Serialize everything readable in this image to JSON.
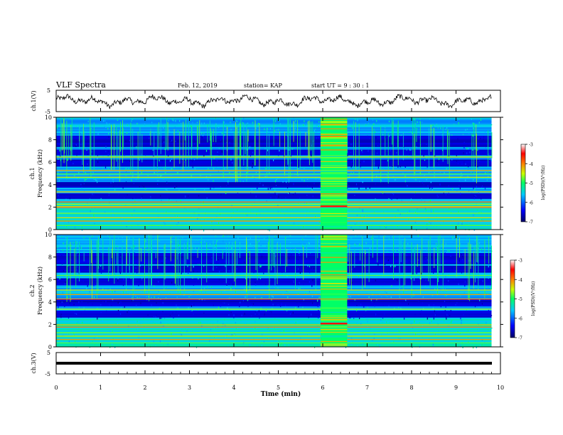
{
  "header": {
    "title": "VLF Spectra",
    "date": "Feb. 12, 2019",
    "station": "station= KAP",
    "start": "start  UT =  9 : 30 : 1"
  },
  "colorbar": {
    "label": "log(PSD)(V²/Hz)",
    "ticks": [
      "-3",
      "-4",
      "-5",
      "-6",
      "-7"
    ],
    "range": [
      -7,
      -3
    ],
    "colors": [
      "#000066",
      "#0000ff",
      "#00c8ff",
      "#00ff66",
      "#c8ff00",
      "#ff8000",
      "#ff0000",
      "#ffffff"
    ]
  },
  "chart_data": [
    {
      "type": "line",
      "id": "ch1-waveform",
      "ylabel": "ch.1(V)",
      "xlim": [
        0,
        10
      ],
      "ylim": [
        -5,
        5
      ],
      "yticks": [
        "5",
        "-5"
      ],
      "x_extent": [
        0,
        9.8
      ],
      "approx_mean": 0.0,
      "approx_amplitude": 2.5
    },
    {
      "type": "heatmap",
      "id": "ch1-spectrogram",
      "ylabel": "ch.1\nFrequency (kHz)",
      "xlim": [
        0,
        10
      ],
      "ylim": [
        0,
        10
      ],
      "yticks": [
        "0",
        "2",
        "4",
        "6",
        "8",
        "10"
      ],
      "x_extent": [
        0,
        9.8
      ],
      "value_range": [
        -7,
        -3
      ],
      "dark_bands_khz": [
        [
          2.8,
          3.3
        ],
        [
          3.7,
          4.3
        ],
        [
          5.6,
          6.2
        ],
        [
          6.6,
          7.1
        ],
        [
          7.4,
          8.4
        ]
      ],
      "strong_lines_khz": [
        0.4,
        0.8,
        1.1,
        1.5,
        2.0,
        2.1,
        2.3,
        2.5,
        3.4,
        4.7,
        5.0,
        5.3,
        6.5
      ],
      "burst_time_min": [
        5.95,
        6.55
      ]
    },
    {
      "type": "heatmap",
      "id": "ch2-spectrogram",
      "ylabel": "ch.2\nFrequency (kHz)",
      "xlim": [
        0,
        10
      ],
      "ylim": [
        0,
        10
      ],
      "yticks": [
        "0",
        "2",
        "4",
        "6",
        "8",
        "10"
      ],
      "x_extent": [
        0,
        9.8
      ],
      "value_range": [
        -7,
        -3
      ],
      "dark_bands_khz": [
        [
          2.6,
          3.3
        ],
        [
          3.6,
          4.2
        ],
        [
          5.5,
          6.1
        ],
        [
          6.6,
          7.2
        ],
        [
          7.4,
          8.4
        ]
      ],
      "strong_lines_khz": [
        0.4,
        0.7,
        1.0,
        1.3,
        1.8,
        2.0,
        3.4,
        4.3,
        4.7,
        5.1,
        6.4
      ],
      "burst_time_min": [
        5.95,
        6.55
      ]
    },
    {
      "type": "line",
      "id": "ch3-waveform",
      "ylabel": "ch.3(V)",
      "xlim": [
        0,
        10
      ],
      "ylim": [
        -5,
        5
      ],
      "yticks": [
        "5",
        "-5"
      ],
      "x_extent": [
        0,
        9.8
      ],
      "approx_mean": 0.0,
      "approx_amplitude": 0.1
    }
  ],
  "xaxis": {
    "label": "Time (min)",
    "ticks": [
      "0",
      "1",
      "2",
      "3",
      "4",
      "5",
      "6",
      "7",
      "8",
      "9",
      "10"
    ]
  }
}
